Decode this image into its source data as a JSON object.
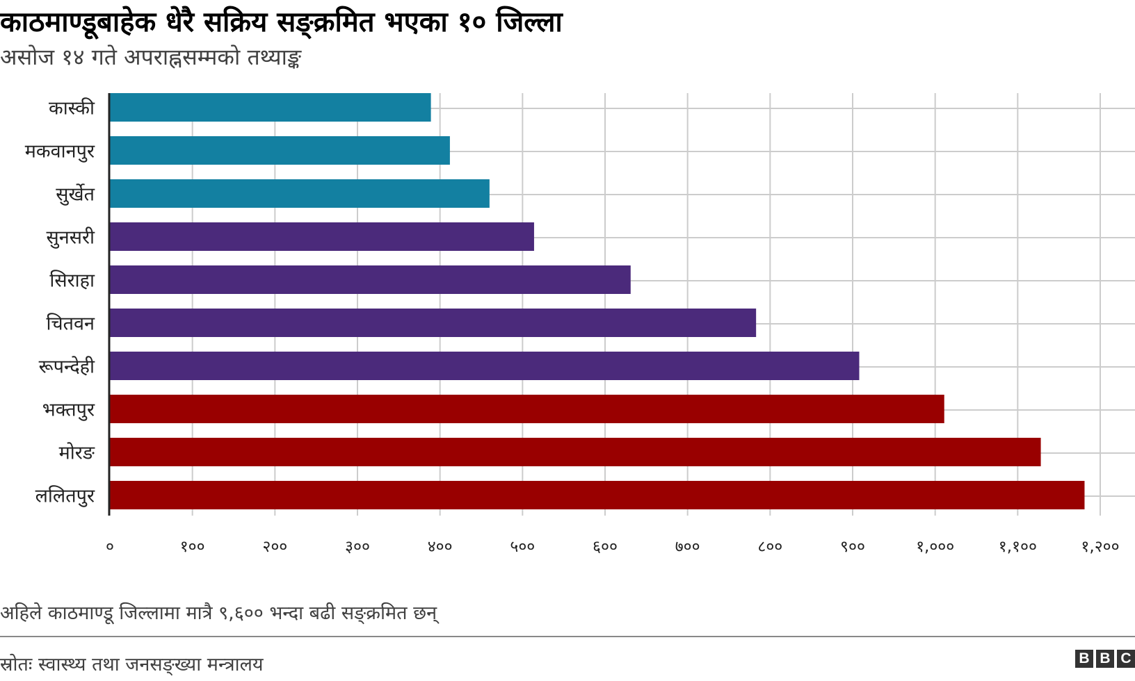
{
  "header": {
    "title": "काठमाण्डूबाहेक धेरै सक्रिय सङ्क्रमित भएका १० जिल्ला",
    "subtitle": "असोज १४ गते अपराह्नसम्मको तथ्याङ्क"
  },
  "chart_data": {
    "type": "bar",
    "orientation": "horizontal",
    "categories": [
      "कास्की",
      "मकवानपुर",
      "सुर्खेत",
      "सुनसरी",
      "सिराहा",
      "चितवन",
      "रूपन्देही",
      "भक्तपुर",
      "मोरङ",
      "ललितपुर"
    ],
    "values": [
      389,
      412,
      460,
      514,
      631,
      783,
      908,
      1011,
      1128,
      1181
    ],
    "bar_colors": [
      "#1380A1",
      "#1380A1",
      "#1380A1",
      "#4B2A7B",
      "#4B2A7B",
      "#4B2A7B",
      "#4B2A7B",
      "#990000",
      "#990000",
      "#990000"
    ],
    "xlim": [
      0,
      1200
    ],
    "x_ticks": [
      0,
      100,
      200,
      300,
      400,
      500,
      600,
      700,
      800,
      900,
      1000,
      1100,
      1200
    ],
    "x_tick_labels": [
      "०",
      "१००",
      "२००",
      "३००",
      "४००",
      "५००",
      "६००",
      "७००",
      "८००",
      "९००",
      "१,०००",
      "१,१००",
      "१,२००"
    ],
    "grid": true,
    "grid_color": "#CCCCCC",
    "axis_color": "#222222"
  },
  "footer": {
    "note": "अहिले काठमाण्डू जिल्लामा मात्रै ९,६०० भन्दा बढी सङ्क्रमित छन्",
    "source": "स्रोतः स्वास्थ्य तथा जनसङ्ख्या मन्त्रालय",
    "logo": [
      "B",
      "B",
      "C"
    ]
  }
}
